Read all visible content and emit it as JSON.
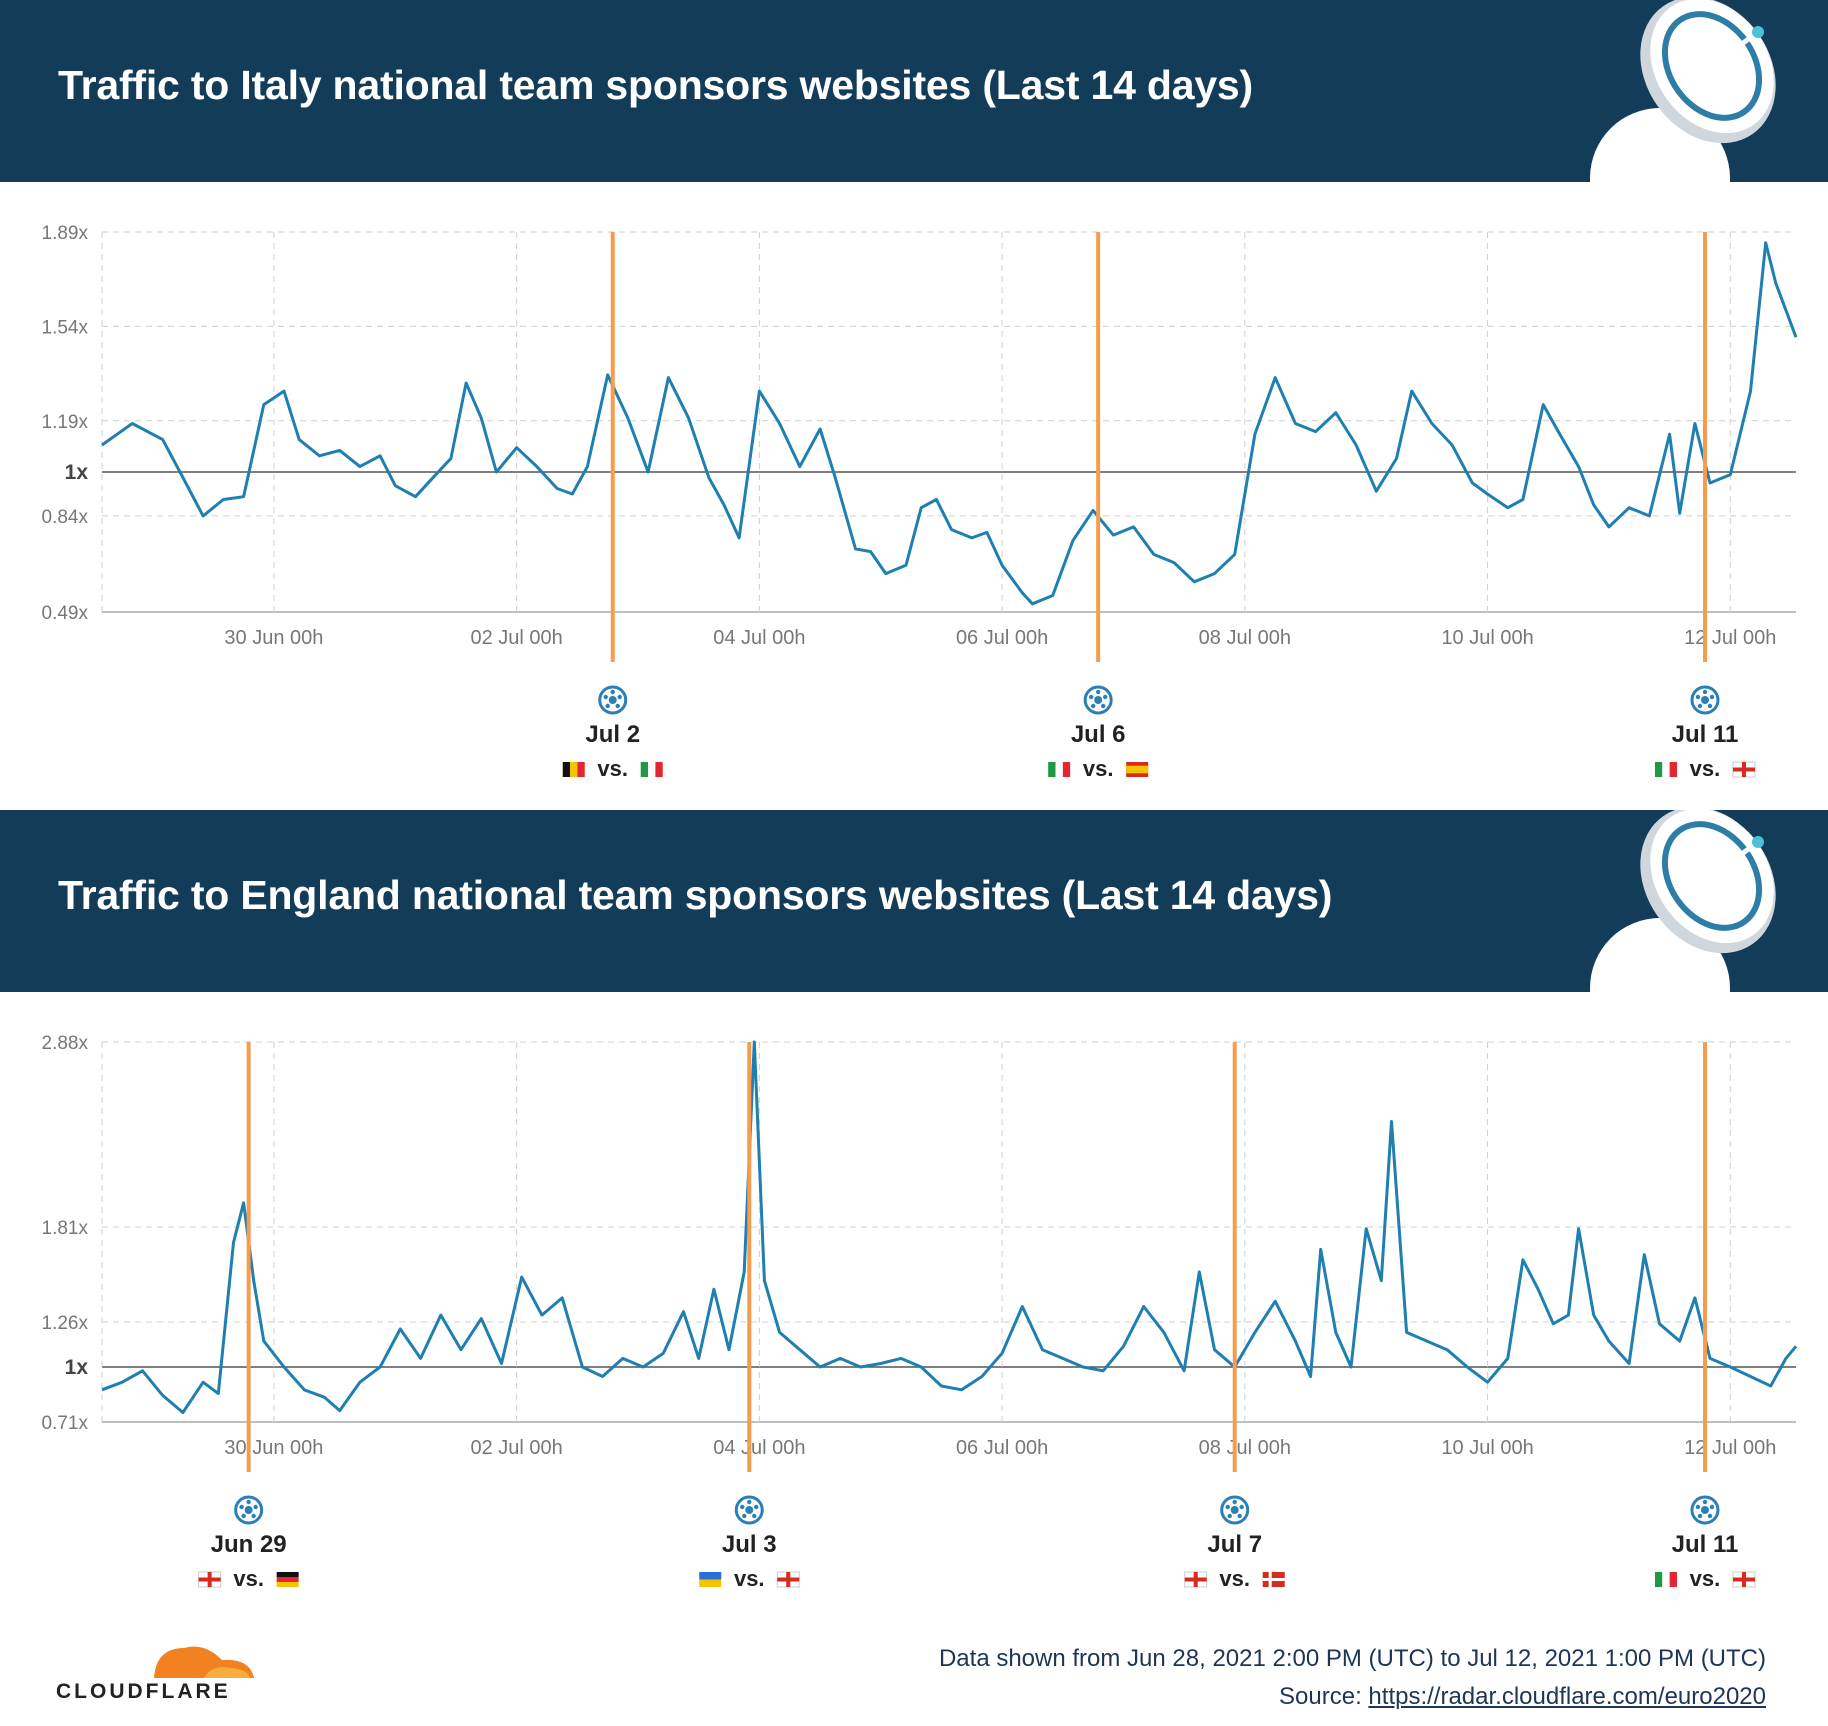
{
  "footer": {
    "logo_text": "CLOUDFLARE",
    "data_range": "Data shown from Jun 28, 2021 2:00 PM (UTC) to Jul 12, 2021 1:00 PM (UTC)",
    "source_prefix": "Source: ",
    "source_url": "https://radar.cloudflare.com/euro2020"
  },
  "colors": {
    "banner": "#123c58",
    "line": "#1f7fb0",
    "match_line": "#f79b4d",
    "baseline": "#555555"
  },
  "chart_data": [
    {
      "type": "line",
      "title": "Traffic to Italy national team sponsors websites (Last 14 days)",
      "x_range": [
        "2021-06-28 14:00",
        "2021-07-12 13:00"
      ],
      "x_ticks": [
        "30 Jun 00h",
        "02 Jul 00h",
        "04 Jul 00h",
        "06 Jul 00h",
        "08 Jul 00h",
        "10 Jul 00h",
        "12 Jul 00h"
      ],
      "y_ticks": [
        "1.89x",
        "1.54x",
        "1.19x",
        "1x",
        "0.84x",
        "0.49x"
      ],
      "ylim": [
        0.49,
        1.89
      ],
      "grid": true,
      "series": [
        {
          "points": [
            [
              "06-28 14:00",
              1.1
            ],
            [
              "06-28 20:00",
              1.18
            ],
            [
              "06-29 02:00",
              1.12
            ],
            [
              "06-29 06:00",
              0.98
            ],
            [
              "06-29 10:00",
              0.84
            ],
            [
              "06-29 14:00",
              0.9
            ],
            [
              "06-29 18:00",
              0.91
            ],
            [
              "06-29 22:00",
              1.25
            ],
            [
              "06-30 02:00",
              1.3
            ],
            [
              "06-30 05:00",
              1.12
            ],
            [
              "06-30 09:00",
              1.06
            ],
            [
              "06-30 13:00",
              1.08
            ],
            [
              "06-30 17:00",
              1.02
            ],
            [
              "06-30 21:00",
              1.06
            ],
            [
              "07-01 00:00",
              0.95
            ],
            [
              "07-01 04:00",
              0.91
            ],
            [
              "07-01 08:00",
              0.99
            ],
            [
              "07-01 11:00",
              1.05
            ],
            [
              "07-01 14:00",
              1.33
            ],
            [
              "07-01 17:00",
              1.2
            ],
            [
              "07-01 20:00",
              1.0
            ],
            [
              "07-02 00:00",
              1.09
            ],
            [
              "07-02 04:00",
              1.02
            ],
            [
              "07-02 08:00",
              0.94
            ],
            [
              "07-02 11:00",
              0.92
            ],
            [
              "07-02 14:00",
              1.02
            ],
            [
              "07-02 18:00",
              1.36
            ],
            [
              "07-02 22:00",
              1.2
            ],
            [
              "07-03 02:00",
              1.0
            ],
            [
              "07-03 06:00",
              1.35
            ],
            [
              "07-03 10:00",
              1.2
            ],
            [
              "07-03 14:00",
              0.98
            ],
            [
              "07-03 17:00",
              0.88
            ],
            [
              "07-03 20:00",
              0.76
            ],
            [
              "07-04 00:00",
              1.3
            ],
            [
              "07-04 04:00",
              1.18
            ],
            [
              "07-04 08:00",
              1.02
            ],
            [
              "07-04 12:00",
              1.16
            ],
            [
              "07-04 15:00",
              0.98
            ],
            [
              "07-04 19:00",
              0.72
            ],
            [
              "07-04 22:00",
              0.71
            ],
            [
              "07-05 01:00",
              0.63
            ],
            [
              "07-05 05:00",
              0.66
            ],
            [
              "07-05 08:00",
              0.87
            ],
            [
              "07-05 11:00",
              0.9
            ],
            [
              "07-05 14:00",
              0.79
            ],
            [
              "07-05 18:00",
              0.76
            ],
            [
              "07-05 21:00",
              0.78
            ],
            [
              "07-06 00:00",
              0.66
            ],
            [
              "07-06 04:00",
              0.56
            ],
            [
              "07-06 06:00",
              0.52
            ],
            [
              "07-06 10:00",
              0.55
            ],
            [
              "07-06 14:00",
              0.75
            ],
            [
              "07-06 18:00",
              0.86
            ],
            [
              "07-06 22:00",
              0.77
            ],
            [
              "07-07 02:00",
              0.8
            ],
            [
              "07-07 06:00",
              0.7
            ],
            [
              "07-07 10:00",
              0.67
            ],
            [
              "07-07 14:00",
              0.6
            ],
            [
              "07-07 18:00",
              0.63
            ],
            [
              "07-07 22:00",
              0.7
            ],
            [
              "07-08 02:00",
              1.14
            ],
            [
              "07-08 06:00",
              1.35
            ],
            [
              "07-08 10:00",
              1.18
            ],
            [
              "07-08 14:00",
              1.15
            ],
            [
              "07-08 18:00",
              1.22
            ],
            [
              "07-08 22:00",
              1.1
            ],
            [
              "07-09 02:00",
              0.93
            ],
            [
              "07-09 06:00",
              1.05
            ],
            [
              "07-09 09:00",
              1.3
            ],
            [
              "07-09 13:00",
              1.18
            ],
            [
              "07-09 17:00",
              1.1
            ],
            [
              "07-09 21:00",
              0.96
            ],
            [
              "07-10 00:00",
              0.92
            ],
            [
              "07-10 04:00",
              0.87
            ],
            [
              "07-10 07:00",
              0.9
            ],
            [
              "07-10 11:00",
              1.25
            ],
            [
              "07-10 14:00",
              1.15
            ],
            [
              "07-10 18:00",
              1.02
            ],
            [
              "07-10 21:00",
              0.88
            ],
            [
              "07-11 00:00",
              0.8
            ],
            [
              "07-11 04:00",
              0.87
            ],
            [
              "07-11 08:00",
              0.84
            ],
            [
              "07-11 12:00",
              1.14
            ],
            [
              "07-11 14:00",
              0.85
            ],
            [
              "07-11 17:00",
              1.18
            ],
            [
              "07-11 20:00",
              0.96
            ],
            [
              "07-12 00:00",
              0.99
            ],
            [
              "07-12 04:00",
              1.3
            ],
            [
              "07-12 07:00",
              1.85
            ],
            [
              "07-12 09:00",
              1.7
            ],
            [
              "07-12 11:00",
              1.6
            ],
            [
              "07-12 13:00",
              1.5
            ]
          ]
        }
      ],
      "matches": [
        {
          "date": "Jul 2",
          "at": "07-02 19:00",
          "home_flag": "BE",
          "away_flag": "IT",
          "vs": "vs."
        },
        {
          "date": "Jul 6",
          "at": "07-06 19:00",
          "home_flag": "IT",
          "away_flag": "ES",
          "vs": "vs."
        },
        {
          "date": "Jul 11",
          "at": "07-11 19:00",
          "home_flag": "IT",
          "away_flag": "EN",
          "vs": "vs."
        }
      ]
    },
    {
      "type": "line",
      "title": "Traffic to England national team sponsors websites (Last 14 days)",
      "x_range": [
        "2021-06-28 14:00",
        "2021-07-12 13:00"
      ],
      "x_ticks": [
        "30 Jun 00h",
        "02 Jul 00h",
        "04 Jul 00h",
        "06 Jul 00h",
        "08 Jul 00h",
        "10 Jul 00h",
        "12 Jul 00h"
      ],
      "y_ticks": [
        "2.88x",
        "1.81x",
        "1.26x",
        "1x",
        "0.71x"
      ],
      "ylim": [
        0.71,
        2.88
      ],
      "grid": true,
      "series": [
        {
          "points": [
            [
              "06-28 14:00",
              0.88
            ],
            [
              "06-28 18:00",
              0.92
            ],
            [
              "06-28 22:00",
              0.98
            ],
            [
              "06-29 02:00",
              0.85
            ],
            [
              "06-29 06:00",
              0.76
            ],
            [
              "06-29 10:00",
              0.92
            ],
            [
              "06-29 13:00",
              0.86
            ],
            [
              "06-29 16:00",
              1.72
            ],
            [
              "06-29 18:00",
              1.95
            ],
            [
              "06-29 20:00",
              1.5
            ],
            [
              "06-29 22:00",
              1.15
            ],
            [
              "06-30 02:00",
              1.0
            ],
            [
              "06-30 06:00",
              0.88
            ],
            [
              "06-30 10:00",
              0.84
            ],
            [
              "06-30 13:00",
              0.77
            ],
            [
              "06-30 17:00",
              0.92
            ],
            [
              "06-30 21:00",
              1.0
            ],
            [
              "07-01 01:00",
              1.22
            ],
            [
              "07-01 05:00",
              1.05
            ],
            [
              "07-01 09:00",
              1.3
            ],
            [
              "07-01 13:00",
              1.1
            ],
            [
              "07-01 17:00",
              1.28
            ],
            [
              "07-01 21:00",
              1.02
            ],
            [
              "07-02 01:00",
              1.52
            ],
            [
              "07-02 05:00",
              1.3
            ],
            [
              "07-02 09:00",
              1.4
            ],
            [
              "07-02 13:00",
              1.0
            ],
            [
              "07-02 17:00",
              0.95
            ],
            [
              "07-02 21:00",
              1.05
            ],
            [
              "07-03 01:00",
              1.0
            ],
            [
              "07-03 05:00",
              1.08
            ],
            [
              "07-03 09:00",
              1.32
            ],
            [
              "07-03 12:00",
              1.05
            ],
            [
              "07-03 15:00",
              1.45
            ],
            [
              "07-03 18:00",
              1.1
            ],
            [
              "07-03 21:00",
              1.55
            ],
            [
              "07-03 23:00",
              2.88
            ],
            [
              "07-04 01:00",
              1.5
            ],
            [
              "07-04 04:00",
              1.2
            ],
            [
              "07-04 08:00",
              1.1
            ],
            [
              "07-04 12:00",
              1.0
            ],
            [
              "07-04 16:00",
              1.05
            ],
            [
              "07-04 20:00",
              1.0
            ],
            [
              "07-05 00:00",
              1.02
            ],
            [
              "07-05 04:00",
              1.05
            ],
            [
              "07-05 08:00",
              1.0
            ],
            [
              "07-05 12:00",
              0.9
            ],
            [
              "07-05 16:00",
              0.88
            ],
            [
              "07-05 20:00",
              0.95
            ],
            [
              "07-06 00:00",
              1.08
            ],
            [
              "07-06 04:00",
              1.35
            ],
            [
              "07-06 08:00",
              1.1
            ],
            [
              "07-06 12:00",
              1.05
            ],
            [
              "07-06 16:00",
              1.0
            ],
            [
              "07-06 20:00",
              0.98
            ],
            [
              "07-07 00:00",
              1.12
            ],
            [
              "07-07 04:00",
              1.35
            ],
            [
              "07-07 08:00",
              1.2
            ],
            [
              "07-07 12:00",
              0.98
            ],
            [
              "07-07 15:00",
              1.55
            ],
            [
              "07-07 18:00",
              1.1
            ],
            [
              "07-07 22:00",
              1.0
            ],
            [
              "07-08 02:00",
              1.2
            ],
            [
              "07-08 06:00",
              1.38
            ],
            [
              "07-08 10:00",
              1.15
            ],
            [
              "07-08 13:00",
              0.95
            ],
            [
              "07-08 15:00",
              1.68
            ],
            [
              "07-08 18:00",
              1.2
            ],
            [
              "07-08 21:00",
              1.0
            ],
            [
              "07-09 00:00",
              1.8
            ],
            [
              "07-09 03:00",
              1.5
            ],
            [
              "07-09 05:00",
              2.42
            ],
            [
              "07-09 08:00",
              1.2
            ],
            [
              "07-09 12:00",
              1.15
            ],
            [
              "07-09 16:00",
              1.1
            ],
            [
              "07-09 20:00",
              1.0
            ],
            [
              "07-10 00:00",
              0.92
            ],
            [
              "07-10 04:00",
              1.05
            ],
            [
              "07-10 07:00",
              1.62
            ],
            [
              "07-10 10:00",
              1.45
            ],
            [
              "07-10 13:00",
              1.25
            ],
            [
              "07-10 16:00",
              1.3
            ],
            [
              "07-10 18:00",
              1.8
            ],
            [
              "07-10 21:00",
              1.3
            ],
            [
              "07-11 00:00",
              1.15
            ],
            [
              "07-11 04:00",
              1.02
            ],
            [
              "07-11 07:00",
              1.65
            ],
            [
              "07-11 10:00",
              1.25
            ],
            [
              "07-11 14:00",
              1.15
            ],
            [
              "07-11 17:00",
              1.4
            ],
            [
              "07-11 20:00",
              1.05
            ],
            [
              "07-12 00:00",
              1.0
            ],
            [
              "07-12 04:00",
              0.95
            ],
            [
              "07-12 08:00",
              0.9
            ],
            [
              "07-12 11:00",
              1.05
            ],
            [
              "07-12 13:00",
              1.12
            ]
          ]
        }
      ],
      "matches": [
        {
          "date": "Jun 29",
          "at": "06-29 19:00",
          "home_flag": "EN",
          "away_flag": "DE",
          "vs": "vs."
        },
        {
          "date": "Jul 3",
          "at": "07-03 22:00",
          "home_flag": "UA",
          "away_flag": "EN",
          "vs": "vs."
        },
        {
          "date": "Jul 7",
          "at": "07-07 22:00",
          "home_flag": "EN",
          "away_flag": "DK",
          "vs": "vs."
        },
        {
          "date": "Jul 11",
          "at": "07-11 19:00",
          "home_flag": "IT",
          "away_flag": "EN",
          "vs": "vs."
        }
      ]
    }
  ]
}
